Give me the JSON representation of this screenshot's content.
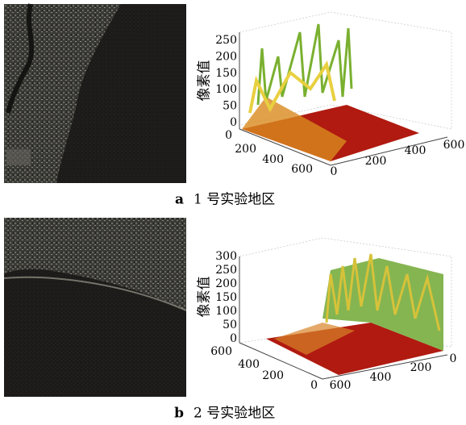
{
  "panels": [
    {
      "label": "a",
      "caption": "1 号实验地区",
      "zlabel": "像素值",
      "zticks": [
        0,
        50,
        100,
        150,
        200,
        250
      ],
      "left_ticks": [
        0,
        200,
        400,
        600
      ],
      "right_ticks": [
        0,
        200,
        400,
        600
      ]
    },
    {
      "label": "b",
      "caption": "2 号实验地区",
      "zlabel": "像素值",
      "zticks": [
        0,
        50,
        100,
        150,
        200,
        250,
        300
      ],
      "left_ticks": [
        600,
        400,
        200,
        0
      ],
      "right_ticks": [
        600,
        400,
        200,
        0
      ]
    }
  ]
}
